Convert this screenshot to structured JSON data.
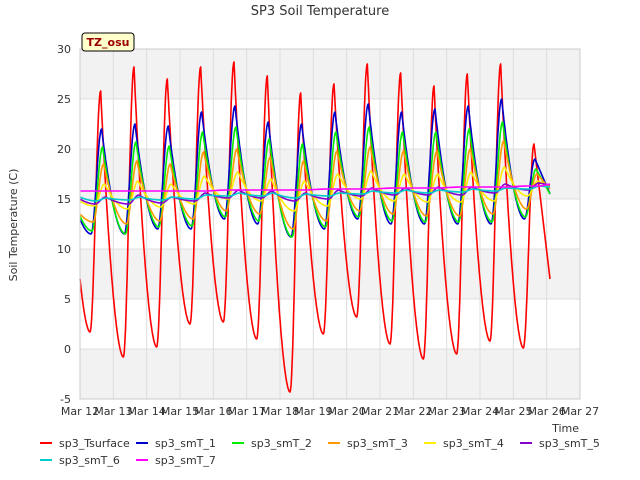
{
  "chart_data": {
    "type": "line",
    "title": "SP3 Soil Temperature",
    "xlabel": "Time",
    "ylabel": "Soil Temperature (C)",
    "badge": "TZ_osu",
    "ylim": [
      -5,
      30
    ],
    "xlim": [
      0,
      15
    ],
    "yticks": [
      -5,
      0,
      5,
      10,
      15,
      20,
      25,
      30
    ],
    "xticks": [
      0,
      1,
      2,
      3,
      4,
      5,
      6,
      7,
      8,
      9,
      10,
      11,
      12,
      13,
      14,
      15
    ],
    "xtick_labels": [
      "Mar 12",
      "Mar 13",
      "Mar 14",
      "Mar 15",
      "Mar 16",
      "Mar 17",
      "Mar 18",
      "Mar 19",
      "Mar 20",
      "Mar 21",
      "Mar 22",
      "Mar 23",
      "Mar 24",
      "Mar 25",
      "Mar 26",
      "Mar 27"
    ],
    "grid": true,
    "legend_position": "bottom",
    "series": [
      {
        "name": "sp3_Tsurface",
        "color": "#ff0000",
        "daily_max": [
          25.8,
          28.2,
          27.0,
          28.2,
          28.7,
          27.3,
          25.6,
          26.5,
          28.5,
          27.6,
          26.3,
          27.5,
          28.5,
          20.5
        ],
        "daily_min": [
          1.7,
          -0.8,
          0.2,
          2.5,
          2.7,
          1.0,
          -4.3,
          1.5,
          3.2,
          0.5,
          -1.0,
          -0.5,
          0.8,
          0.1
        ],
        "start": 7.0,
        "end": 7.0
      },
      {
        "name": "sp3_smT_1",
        "color": "#0000cc",
        "daily_max": [
          22.0,
          22.5,
          22.3,
          23.7,
          24.3,
          22.7,
          22.5,
          23.7,
          24.5,
          23.7,
          24.0,
          24.3,
          25.0,
          19.0
        ],
        "daily_min": [
          11.5,
          11.5,
          12.0,
          12.0,
          13.0,
          12.5,
          11.2,
          12.0,
          13.0,
          12.5,
          12.5,
          12.5,
          12.5,
          13.0
        ],
        "start": 13.0,
        "end": 15.5
      },
      {
        "name": "sp3_smT_2",
        "color": "#00ee00",
        "daily_max": [
          20.2,
          20.7,
          20.3,
          21.7,
          22.2,
          21.0,
          20.5,
          21.7,
          22.2,
          21.7,
          21.7,
          22.0,
          22.7,
          18.0
        ],
        "daily_min": [
          11.8,
          11.5,
          12.2,
          12.3,
          13.2,
          12.8,
          11.2,
          12.2,
          13.2,
          12.8,
          12.7,
          12.7,
          12.7,
          13.2
        ],
        "start": 13.3,
        "end": 15.5
      },
      {
        "name": "sp3_smT_3",
        "color": "#ff9900",
        "daily_max": [
          18.5,
          18.8,
          18.5,
          19.7,
          20.0,
          19.2,
          18.8,
          19.8,
          20.2,
          19.8,
          19.8,
          20.0,
          20.8,
          17.5
        ],
        "daily_min": [
          12.7,
          12.5,
          12.8,
          13.0,
          13.8,
          13.5,
          12.0,
          12.8,
          13.8,
          13.5,
          13.3,
          13.3,
          13.5,
          14.0
        ],
        "start": 13.5,
        "end": 16.0
      },
      {
        "name": "sp3_smT_4",
        "color": "#ffee00",
        "daily_max": [
          16.5,
          16.8,
          16.5,
          17.3,
          17.7,
          17.0,
          16.8,
          17.5,
          17.8,
          17.5,
          17.5,
          17.7,
          18.2,
          16.8
        ],
        "daily_min": [
          14.3,
          14.0,
          14.2,
          14.5,
          15.0,
          14.8,
          13.8,
          14.3,
          15.0,
          14.8,
          14.7,
          14.7,
          14.8,
          15.3
        ],
        "start": 14.8,
        "end": 16.3
      },
      {
        "name": "sp3_smT_5",
        "color": "#8800cc",
        "daily_max": [
          15.2,
          15.4,
          15.2,
          15.6,
          15.9,
          15.8,
          15.6,
          15.9,
          16.1,
          16.1,
          16.2,
          16.2,
          16.5,
          16.6
        ],
        "daily_min": [
          14.5,
          14.5,
          14.6,
          14.8,
          15.1,
          15.1,
          14.8,
          15.0,
          15.3,
          15.4,
          15.4,
          15.4,
          15.6,
          15.9
        ],
        "start": 15.0,
        "end": 16.4
      },
      {
        "name": "sp3_smT_6",
        "color": "#00cccc",
        "daily_max": [
          15.1,
          15.2,
          15.2,
          15.4,
          15.6,
          15.6,
          15.5,
          15.6,
          15.8,
          15.9,
          15.9,
          16.0,
          16.1,
          16.3
        ],
        "daily_min": [
          14.8,
          14.9,
          14.9,
          15.0,
          15.3,
          15.3,
          15.1,
          15.3,
          15.5,
          15.6,
          15.6,
          15.7,
          15.8,
          16.0
        ],
        "start": 15.2,
        "end": 16.2
      },
      {
        "name": "sp3_smT_7",
        "color": "#ff00ff",
        "daily_max": [
          15.8,
          15.8,
          15.8,
          15.8,
          15.9,
          15.9,
          15.9,
          16.0,
          16.0,
          16.1,
          16.1,
          16.2,
          16.2,
          16.3
        ],
        "daily_min": [
          15.8,
          15.8,
          15.8,
          15.8,
          15.9,
          15.9,
          15.9,
          16.0,
          16.0,
          16.1,
          16.1,
          16.2,
          16.2,
          16.3
        ],
        "start": 15.8,
        "end": 16.5
      }
    ]
  }
}
